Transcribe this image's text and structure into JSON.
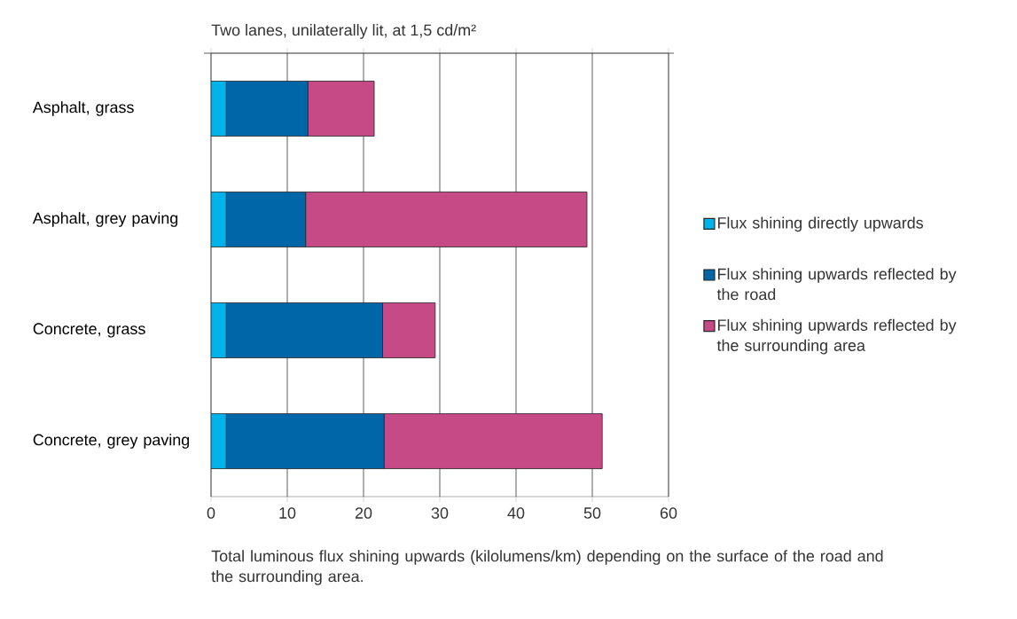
{
  "chart_data": {
    "type": "bar",
    "orientation": "horizontal",
    "stacked": true,
    "title": "Two lanes, unilaterally lit, at 1,5 cd/m²",
    "categories": [
      "Asphalt, grass",
      "Asphalt, grey paving",
      "Concrete, grass",
      "Concrete, grey paving"
    ],
    "series": [
      {
        "name": "Flux shining directly upwards",
        "color": "#00b4eb",
        "values": [
          2,
          2,
          2,
          2
        ]
      },
      {
        "name": "Flux shining upwards reflected by the road",
        "color": "#0066a8",
        "values": [
          10.7,
          10.4,
          20.5,
          20.7
        ]
      },
      {
        "name": "Flux shining upwards reflected by the surrounding area",
        "color": "#c64a85",
        "values": [
          8.7,
          36.9,
          6.9,
          28.6
        ]
      }
    ],
    "xlim": [
      0,
      60
    ],
    "xticks": [
      0,
      10,
      20,
      30,
      40,
      50,
      60
    ],
    "grid": "x",
    "legend": "right",
    "annotations": [
      "Total luminous flux shining upwards (kilolumens/km) depending on the surface of the road and the surrounding area."
    ]
  }
}
